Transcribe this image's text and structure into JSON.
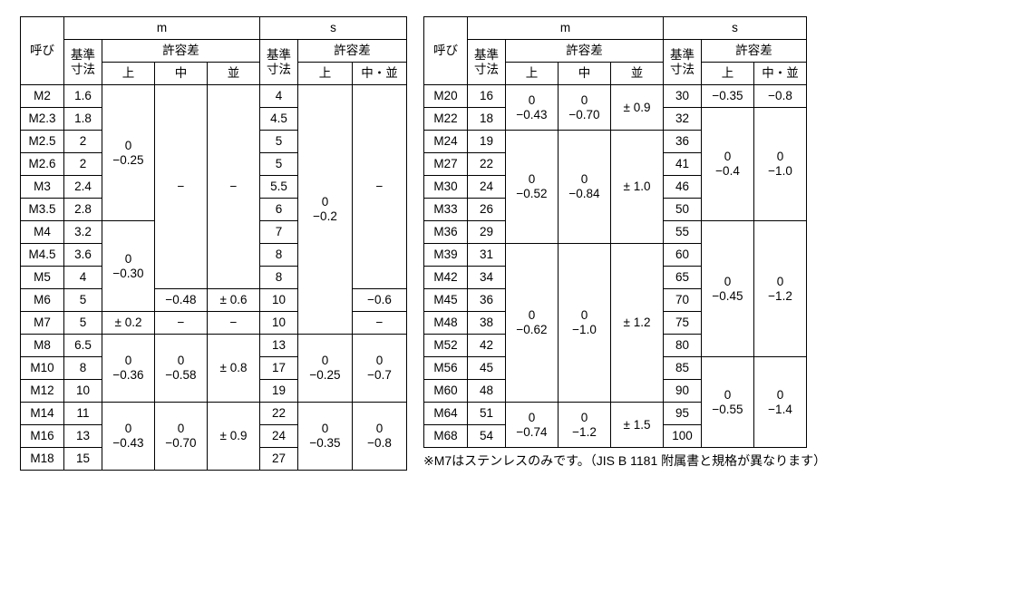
{
  "headers": {
    "name": "呼び",
    "m": "m",
    "s": "s",
    "base": "基準\n寸法",
    "tol": "許容差",
    "u": "上",
    "mid": "中",
    "nami": "並",
    "midnami": "中・並"
  },
  "left": {
    "rows": [
      {
        "n": "M2",
        "mb": "1.6",
        "sb": "4"
      },
      {
        "n": "M2.3",
        "mb": "1.8",
        "sb": "4.5"
      },
      {
        "n": "M2.5",
        "mb": "2",
        "sb": "5"
      },
      {
        "n": "M2.6",
        "mb": "2",
        "sb": "5"
      },
      {
        "n": "M3",
        "mb": "2.4",
        "sb": "5.5"
      },
      {
        "n": "M3.5",
        "mb": "2.8",
        "sb": "6"
      },
      {
        "n": "M4",
        "mb": "3.2",
        "sb": "7"
      },
      {
        "n": "M4.5",
        "mb": "3.6",
        "sb": "8"
      },
      {
        "n": "M5",
        "mb": "4",
        "sb": "8"
      },
      {
        "n": "M6",
        "mb": "5",
        "sb": "10"
      },
      {
        "n": "M7",
        "mb": "5",
        "sb": "10"
      },
      {
        "n": "M8",
        "mb": "6.5",
        "sb": "13"
      },
      {
        "n": "M10",
        "mb": "8",
        "sb": "17"
      },
      {
        "n": "M12",
        "mb": "10",
        "sb": "19"
      },
      {
        "n": "M14",
        "mb": "11",
        "sb": "22"
      },
      {
        "n": "M16",
        "mb": "13",
        "sb": "24"
      },
      {
        "n": "M18",
        "mb": "15",
        "sb": "27"
      }
    ],
    "mu1": "0\n−0.25",
    "mu2": "0\n−0.30",
    "mu3": "± 0.2",
    "mu4": "0\n−0.36",
    "mu5": "0\n−0.43",
    "mm_dash": "−",
    "mm_m6": "−0.48",
    "mm4": "0\n−0.58",
    "mm5": "0\n−0.70",
    "mn_dash": "−",
    "mn_m6": "± 0.6",
    "mn4": "± 0.8",
    "mn5": "± 0.9",
    "su_all": "0\n−0.2",
    "su_8_12": "0\n−0.25",
    "su_14_17": "0\n−0.35",
    "smn_dash": "−",
    "smn_m6": "−0.6",
    "smn_m7": "−",
    "smn_8_12": "0\n−0.7",
    "smn_14_17": "0\n−0.8"
  },
  "right": {
    "rows": [
      {
        "n": "M20",
        "mb": "16",
        "sb": "30"
      },
      {
        "n": "M22",
        "mb": "18",
        "sb": "32"
      },
      {
        "n": "M24",
        "mb": "19",
        "sb": "36"
      },
      {
        "n": "M27",
        "mb": "22",
        "sb": "41"
      },
      {
        "n": "M30",
        "mb": "24",
        "sb": "46"
      },
      {
        "n": "M33",
        "mb": "26",
        "sb": "50"
      },
      {
        "n": "M36",
        "mb": "29",
        "sb": "55"
      },
      {
        "n": "M39",
        "mb": "31",
        "sb": "60"
      },
      {
        "n": "M42",
        "mb": "34",
        "sb": "65"
      },
      {
        "n": "M45",
        "mb": "36",
        "sb": "70"
      },
      {
        "n": "M48",
        "mb": "38",
        "sb": "75"
      },
      {
        "n": "M52",
        "mb": "42",
        "sb": "80"
      },
      {
        "n": "M56",
        "mb": "45",
        "sb": "85"
      },
      {
        "n": "M60",
        "mb": "48",
        "sb": "90"
      },
      {
        "n": "M64",
        "mb": "51",
        "sb": "95"
      },
      {
        "n": "M68",
        "mb": "54",
        "sb": "100"
      }
    ],
    "mu1": "0\n−0.43",
    "mu2": "0\n−0.52",
    "mu3": "0\n−0.62",
    "mu4": "0\n−0.74",
    "mm1": "0\n−0.70",
    "mm2": "0\n−0.84",
    "mm3": "0\n−1.0",
    "mm4": "0\n−1.2",
    "mn1": "± 0.9",
    "mn2": "± 1.0",
    "mn3": "± 1.2",
    "mn4": "± 1.5",
    "su1": "−0.35",
    "su2": "0\n−0.4",
    "su3": "0\n−0.45",
    "su4": "0\n−0.55",
    "smn1": "−0.8",
    "smn2": "0\n−1.0",
    "smn3": "0\n−1.2",
    "smn4": "0\n−1.4"
  },
  "note": "※M7はステンレスのみです。（JIS B 1181 附属書と規格が異なります）"
}
